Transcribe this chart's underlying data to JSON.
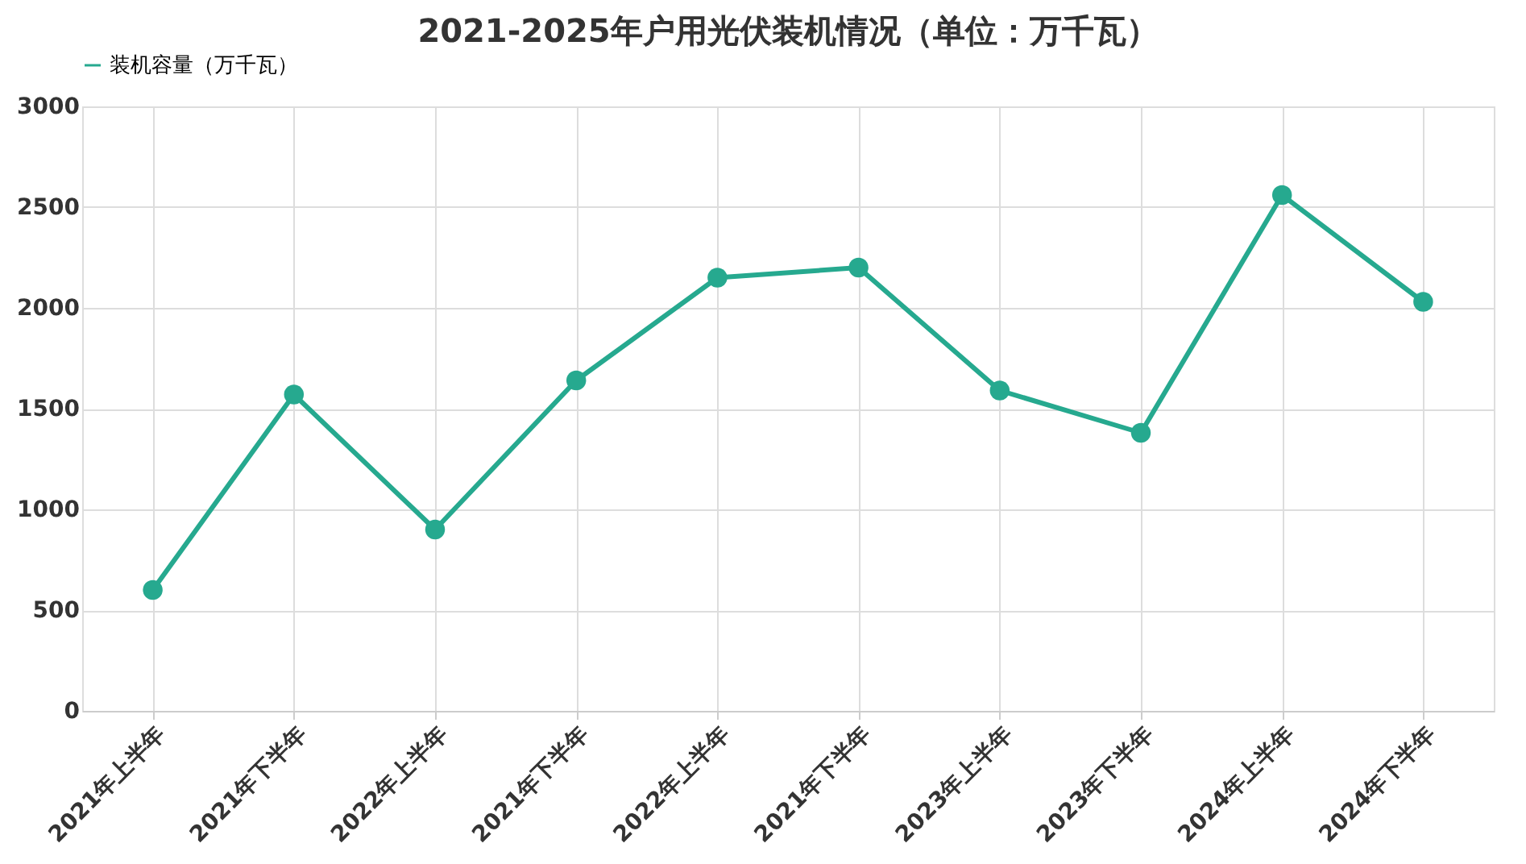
{
  "chart_data": {
    "type": "line",
    "title": "2021-2025年户用光伏装机情况（单位：万千瓦）",
    "categories": [
      "2021年上半年",
      "2021年下半年",
      "2022年上半年",
      "2021年下半年",
      "2022年上半年",
      "2021年下半年",
      "2023年上半年",
      "2023年下半年",
      "2024年上半年",
      "2024年下半年"
    ],
    "series": [
      {
        "name": "装机容量（万千瓦）",
        "color": "#26a98f",
        "values": [
          600,
          1570,
          900,
          1640,
          2150,
          2200,
          1590,
          1380,
          2560,
          2030
        ]
      }
    ],
    "ylim": [
      0,
      3000
    ],
    "yticks": [
      0,
      500,
      1000,
      1500,
      2000,
      2500,
      3000
    ],
    "grid": true,
    "legend": "top",
    "marker": "circle",
    "line_style": "solid"
  }
}
